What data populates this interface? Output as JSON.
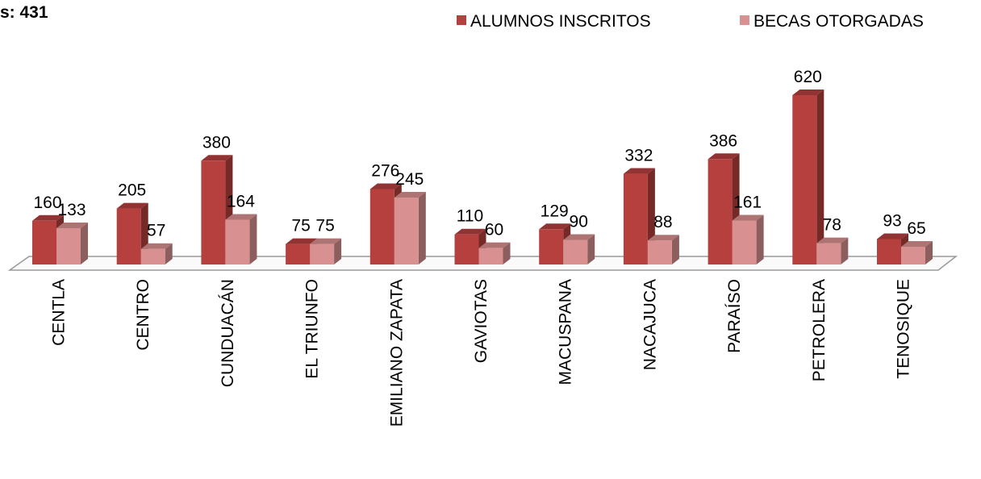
{
  "chart_data": {
    "type": "bar3d",
    "title": "s: 431",
    "categories": [
      "CENTLA",
      "CENTRO",
      "CUNDUACÁN",
      "EL TRIUNFO",
      "EMILIANO ZAPATA",
      "GAVIOTAS",
      "MACUSPANA",
      "NACAJUCA",
      "PARAÍSO",
      "PETROLERA",
      "TENOSIQUE"
    ],
    "series": [
      {
        "name": "ALUMNOS INSCRITOS",
        "color": "#b5403e",
        "values": [
          160,
          205,
          380,
          75,
          276,
          110,
          129,
          332,
          386,
          620,
          93
        ]
      },
      {
        "name": "BECAS OTORGADAS",
        "color": "#d89190",
        "values": [
          133,
          57,
          164,
          75,
          245,
          60,
          90,
          88,
          161,
          78,
          65
        ]
      }
    ],
    "legend": "top-right"
  }
}
